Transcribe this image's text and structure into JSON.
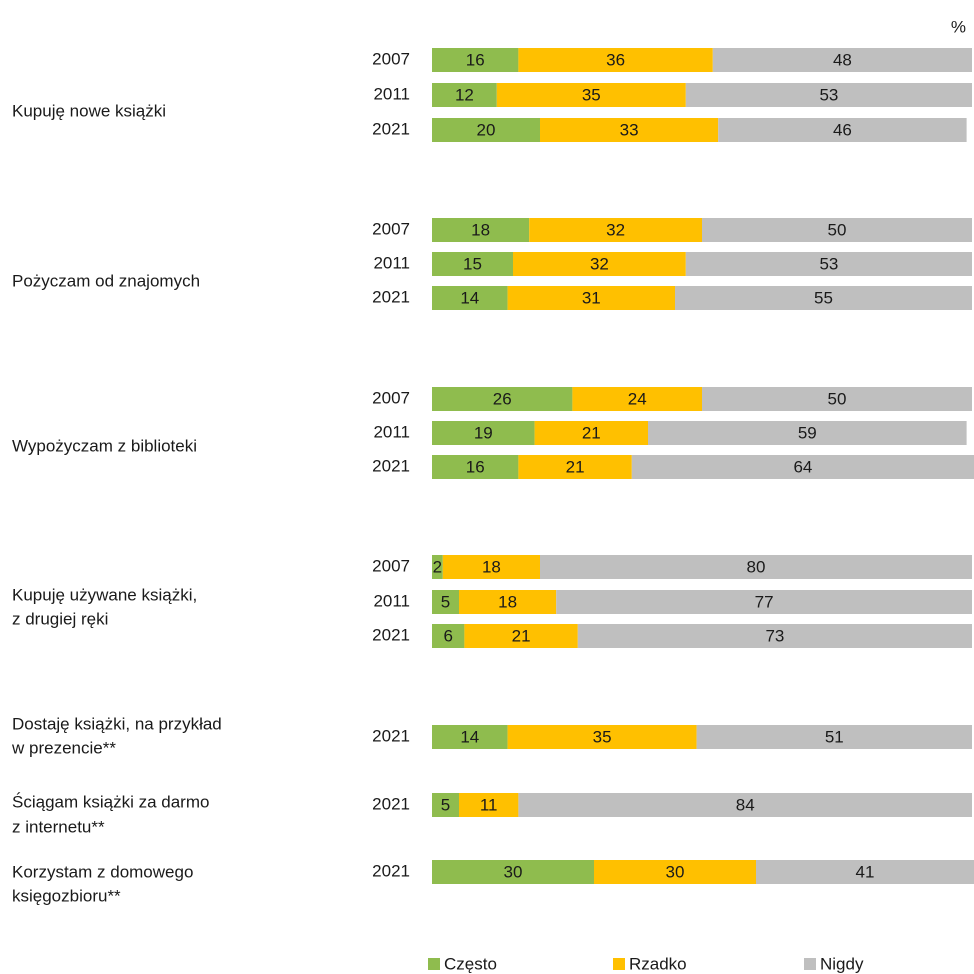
{
  "chart_data": {
    "type": "stacked-bar-horizontal",
    "unit": "%",
    "xlim": [
      0,
      100
    ],
    "series": [
      {
        "name": "Często",
        "color": "#8fbc4e"
      },
      {
        "name": "Rzadko",
        "color": "#ffc000"
      },
      {
        "name": "Nigdy",
        "color": "#bfbfbf"
      }
    ],
    "groups": [
      {
        "label": [
          "Kupuję nowe książki"
        ],
        "categories": [
          "2007",
          "2011",
          "2021"
        ],
        "series": [
          {
            "values": [
              16,
              12,
              20
            ]
          },
          {
            "values": [
              36,
              35,
              33
            ]
          },
          {
            "values": [
              48,
              53,
              46
            ]
          }
        ]
      },
      {
        "label": [
          "Pożyczam od znajomych"
        ],
        "categories": [
          "2007",
          "2011",
          "2021"
        ],
        "series": [
          {
            "values": [
              18,
              15,
              14
            ]
          },
          {
            "values": [
              32,
              32,
              31
            ]
          },
          {
            "values": [
              50,
              53,
              55
            ]
          }
        ]
      },
      {
        "label": [
          "Wypożyczam z biblioteki"
        ],
        "categories": [
          "2007",
          "2011",
          "2021"
        ],
        "series": [
          {
            "values": [
              26,
              19,
              16
            ]
          },
          {
            "values": [
              24,
              21,
              21
            ]
          },
          {
            "values": [
              50,
              59,
              64
            ]
          }
        ]
      },
      {
        "label": [
          "Kupuję używane książki,",
          "z drugiej ręki"
        ],
        "categories": [
          "2007",
          "2011",
          "2021"
        ],
        "series": [
          {
            "values": [
              2,
              5,
              6
            ]
          },
          {
            "values": [
              18,
              18,
              21
            ]
          },
          {
            "values": [
              80,
              77,
              73
            ]
          }
        ]
      },
      {
        "label": [
          "Dostaję książki, na przykład",
          "w prezencie**"
        ],
        "categories": [
          "2021"
        ],
        "series": [
          {
            "values": [
              14
            ]
          },
          {
            "values": [
              35
            ]
          },
          {
            "values": [
              51
            ]
          }
        ]
      },
      {
        "label": [
          "Ściągam książki za darmo",
          "z internetu**"
        ],
        "categories": [
          "2021"
        ],
        "series": [
          {
            "values": [
              5
            ]
          },
          {
            "values": [
              11
            ]
          },
          {
            "values": [
              84
            ]
          }
        ]
      },
      {
        "label": [
          "Korzystam z domowego",
          "księgozbioru**"
        ],
        "categories": [
          "2021"
        ],
        "series": [
          {
            "values": [
              30
            ]
          },
          {
            "values": [
              30
            ]
          },
          {
            "values": [
              41
            ]
          }
        ]
      }
    ]
  }
}
